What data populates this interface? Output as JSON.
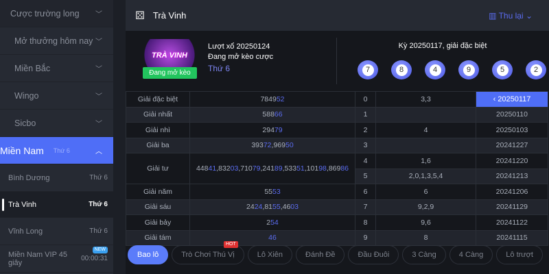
{
  "sidebar": {
    "items": [
      {
        "label": "Cược trường long"
      },
      {
        "label": "Mở thưởng hôm nay"
      },
      {
        "label": "Miền Bắc"
      },
      {
        "label": "Wingo"
      },
      {
        "label": "Sicbo"
      },
      {
        "label": "Miền Nam",
        "sub": "Thứ 6"
      }
    ],
    "children": [
      {
        "label": "Bình Dương",
        "day": "Thứ 6"
      },
      {
        "label": "Trà Vinh",
        "day": "Thứ 6",
        "selected": true
      },
      {
        "label": "Vĩnh Long",
        "day": "Thứ 6"
      },
      {
        "label": "Miền Nam VIP 45 giây",
        "day": "00:00:31",
        "badge": "NEW"
      }
    ]
  },
  "header": {
    "title": "Trà Vinh",
    "history": "Thu lại"
  },
  "info": {
    "logo_text": "TRÀ VINH",
    "status_badge": "Đang mở kèo",
    "draw": "Lượt xổ 20250124",
    "status": "Đang mở kèo cược",
    "weekday": "Thứ 6",
    "last_title": "Kỳ 20250117, giải đặc biệt",
    "balls": [
      "7",
      "8",
      "4",
      "9",
      "5",
      "2"
    ]
  },
  "prizes": [
    {
      "label": "Giải đặc biệt",
      "numbers": [
        "784952"
      ]
    },
    {
      "label": "Giải nhất",
      "numbers": [
        "58866"
      ]
    },
    {
      "label": "Giải nhì",
      "numbers": [
        "29479"
      ]
    },
    {
      "label": "Giải ba",
      "numbers": [
        "39372",
        "96950"
      ]
    },
    {
      "label": "Giải tư",
      "numbers": [
        "44841",
        "83203",
        "71079",
        "24189",
        "53351",
        "10198",
        "86986"
      ]
    },
    {
      "label": "Giải năm",
      "numbers": [
        "5553"
      ]
    },
    {
      "label": "Giải sáu",
      "numbers": [
        "2424",
        "8155",
        "4603"
      ]
    },
    {
      "label": "Giải bảy",
      "numbers": [
        "254"
      ]
    },
    {
      "label": "Giải tám",
      "numbers": [
        "46"
      ]
    }
  ],
  "heads": [
    {
      "d": "0",
      "v": "3,3"
    },
    {
      "d": "1",
      "v": ""
    },
    {
      "d": "2",
      "v": "4"
    },
    {
      "d": "3",
      "v": ""
    },
    {
      "d": "4",
      "v": "1,6"
    },
    {
      "d": "5",
      "v": "2,0,1,3,5,4"
    },
    {
      "d": "6",
      "v": "6"
    },
    {
      "d": "7",
      "v": "9,2,9"
    },
    {
      "d": "8",
      "v": "9,6"
    },
    {
      "d": "9",
      "v": "8"
    }
  ],
  "dates": [
    "20250117",
    "20250110",
    "20250103",
    "20241227",
    "20241220",
    "20241213",
    "20241206",
    "20241129",
    "20241122",
    "20241115"
  ],
  "tabs": [
    {
      "label": "Bao lô",
      "active": true
    },
    {
      "label": "Trò Chơi Thú Vị",
      "badge": "HOT"
    },
    {
      "label": "Lô Xiên"
    },
    {
      "label": "Đánh Đề"
    },
    {
      "label": "Đầu Đuôi"
    },
    {
      "label": "3 Càng"
    },
    {
      "label": "4 Càng"
    },
    {
      "label": "Lô trượt"
    }
  ],
  "colors": {
    "accent": "#4f6ef7",
    "success": "#22c55e",
    "hot": "#e03131"
  }
}
